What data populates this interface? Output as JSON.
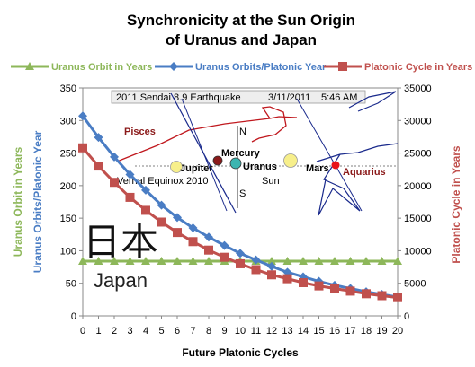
{
  "chart_data": {
    "type": "line",
    "title_lines": [
      "Synchronicity at the Sun Origin",
      "of Uranus and Japan"
    ],
    "xlabel": "Future Platonic Cycles",
    "ylabel_left_outer": "Uranus Orbit in Years",
    "ylabel_left_inner": "Uranus Orbits/Platonic Year",
    "ylabel_right": "Platonic Cycle in Years",
    "x": [
      0,
      1,
      2,
      3,
      4,
      5,
      6,
      7,
      8,
      9,
      10,
      11,
      12,
      13,
      14,
      15,
      16,
      17,
      18,
      19,
      20
    ],
    "x_ticks": [
      "0",
      "1",
      "2",
      "3",
      "4",
      "5",
      "6",
      "7",
      "8",
      "9",
      "10",
      "11",
      "12",
      "13",
      "14",
      "15",
      "16",
      "17",
      "18",
      "19",
      "20"
    ],
    "ylim_left": [
      0,
      350
    ],
    "y_ticks_left": [
      "0",
      "50",
      "100",
      "150",
      "200",
      "250",
      "300",
      "350"
    ],
    "ylim_right": [
      0,
      35000
    ],
    "y_ticks_right": [
      "0",
      "5000",
      "10000",
      "15000",
      "20000",
      "25000",
      "30000",
      "35000"
    ],
    "grid": false,
    "legend_position": "top",
    "series": [
      {
        "name": "Uranus Orbit in Years",
        "axis": "left",
        "color": "#8db75a",
        "marker": "triangle",
        "values": [
          84,
          84,
          84,
          84,
          84,
          84,
          84,
          84,
          84,
          84,
          84,
          84,
          84,
          84,
          84,
          84,
          84,
          84,
          84,
          84,
          84
        ]
      },
      {
        "name": "Uranus Orbits/Platonic Year",
        "axis": "left",
        "color": "#4a7dc4",
        "marker": "diamond",
        "values": [
          307,
          274,
          244,
          217,
          193,
          170,
          151,
          135,
          121,
          108,
          96,
          86,
          76,
          67,
          60,
          53,
          47,
          42,
          37,
          33,
          29
        ]
      },
      {
        "name": "Platonic Cycle in Years",
        "axis": "right",
        "color": "#c0504d",
        "marker": "square",
        "values": [
          25800,
          23000,
          20500,
          18200,
          16200,
          14400,
          12800,
          11400,
          10100,
          9000,
          8000,
          7100,
          6300,
          5700,
          5100,
          4600,
          4200,
          3800,
          3400,
          3100,
          2800
        ]
      }
    ],
    "annotations": {
      "banner_event": "2011 Sendai 8.9 Earthquake",
      "banner_date": "3/11/2011",
      "banner_time": "5:46 AM",
      "pisces": "Pisces",
      "mercury": "Mercury",
      "jupiter": "Jupiter",
      "uranus": "Uranus",
      "sun": "Sun",
      "mars": "Mars",
      "aquarius": "Aquarius",
      "vernal": "Vernal Equinox 2010",
      "north": "N",
      "south": "S",
      "kanji": "日本",
      "japan": "Japan"
    }
  }
}
